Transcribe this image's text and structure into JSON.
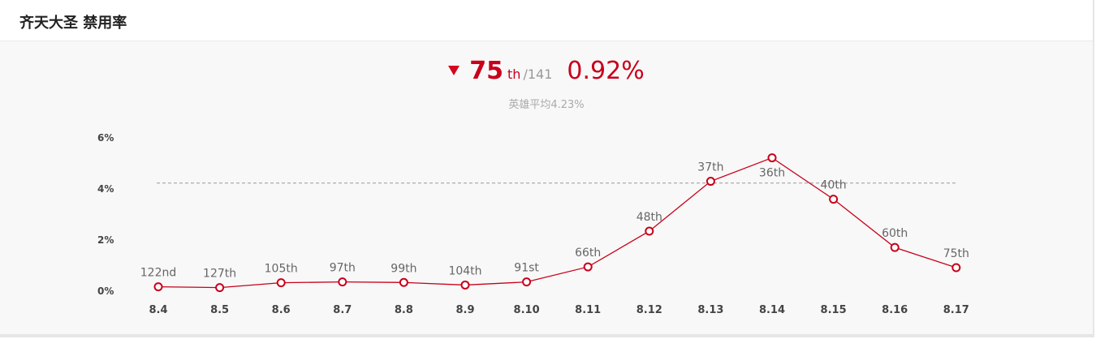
{
  "header": {
    "title": "齐天大圣 禁用率"
  },
  "summary": {
    "trend_icon": "triangle-down-icon",
    "rank": "75",
    "rank_suffix": "th",
    "rank_total": "/141",
    "rate": "0.92%",
    "average_text": "英雄平均4.23%"
  },
  "colors": {
    "accent": "#c8001a",
    "line": "#c8001a",
    "average_line": "#999999",
    "background": "#f8f8f8"
  },
  "chart_data": {
    "type": "line",
    "categories": [
      "8.4",
      "8.5",
      "8.6",
      "8.7",
      "8.8",
      "8.9",
      "8.10",
      "8.11",
      "8.12",
      "8.13",
      "8.14",
      "8.15",
      "8.16",
      "8.17"
    ],
    "values": [
      0.17,
      0.14,
      0.33,
      0.36,
      0.34,
      0.24,
      0.36,
      0.95,
      2.35,
      4.3,
      5.22,
      3.6,
      1.71,
      0.92
    ],
    "point_labels": [
      "122nd",
      "127th",
      "105th",
      "97th",
      "99th",
      "104th",
      "91st",
      "66th",
      "48th",
      "37th",
      "36th",
      "40th",
      "60th",
      "75th"
    ],
    "average": 4.23,
    "ylim": [
      0,
      6
    ],
    "yticks": [
      "0%",
      "2%",
      "4%",
      "6%"
    ],
    "ytick_values": [
      0,
      2,
      4,
      6
    ],
    "grid": false,
    "legend": "none"
  }
}
